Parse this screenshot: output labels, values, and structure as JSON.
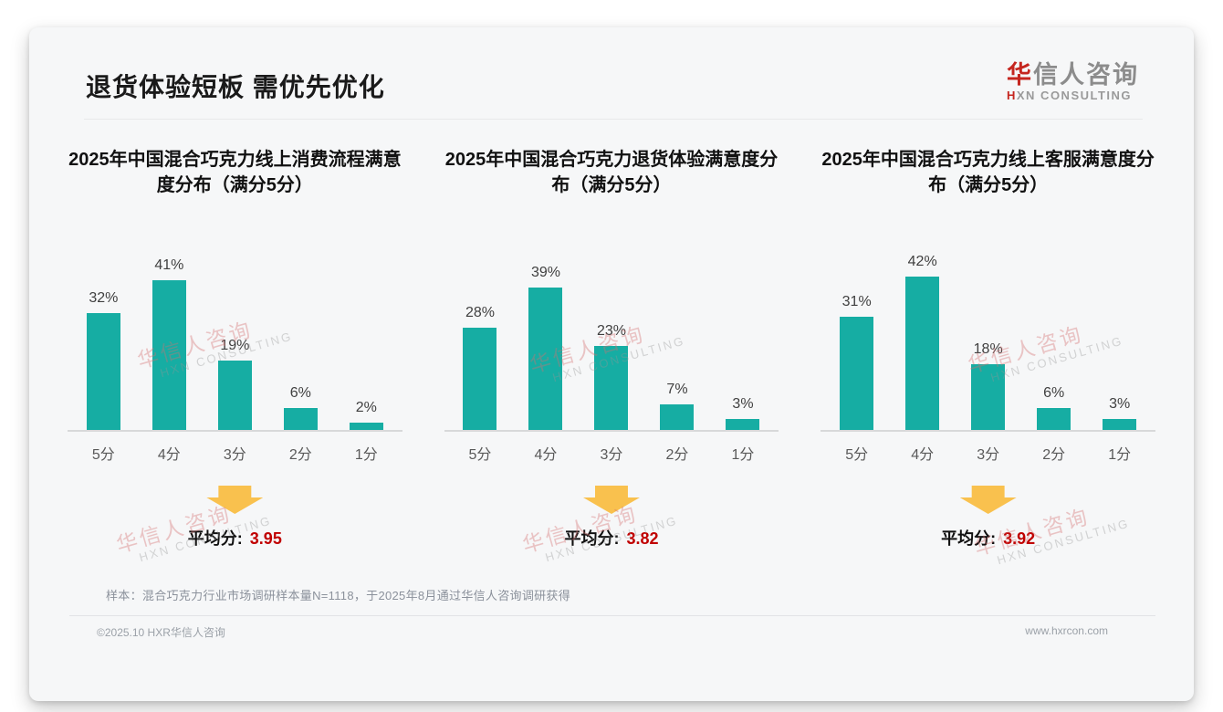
{
  "header": {
    "title": "退货体验短板 需优先优化",
    "logo": {
      "cn_red": "华",
      "cn_gray": "信人咨询",
      "en_red": "H",
      "en_gray": "XN CONSULTING"
    }
  },
  "strings": {
    "avg_label": "平均分:"
  },
  "watermark": {
    "line1": "华信人咨询",
    "line2": "HXN CONSULTING"
  },
  "colors": {
    "bar_teal": "#16ada3",
    "accent_red": "#c00000",
    "arrow_yellow": "#f9c14e",
    "logo_red": "#c5261f"
  },
  "chart_data": [
    {
      "type": "bar",
      "title": "2025年中国混合巧克力线上消费流程满意度分布（满分5分）",
      "categories": [
        "5分",
        "4分",
        "3分",
        "2分",
        "1分"
      ],
      "values": [
        32,
        41,
        19,
        6,
        2
      ],
      "unit": "%",
      "ylim": [
        0,
        45
      ],
      "grid": false,
      "average": 3.95
    },
    {
      "type": "bar",
      "title": "2025年中国混合巧克力退货体验满意度分布（满分5分）",
      "categories": [
        "5分",
        "4分",
        "3分",
        "2分",
        "1分"
      ],
      "values": [
        28,
        39,
        23,
        7,
        3
      ],
      "unit": "%",
      "ylim": [
        0,
        45
      ],
      "grid": false,
      "average": 3.82
    },
    {
      "type": "bar",
      "title": "2025年中国混合巧克力线上客服满意度分布（满分5分）",
      "categories": [
        "5分",
        "4分",
        "3分",
        "2分",
        "1分"
      ],
      "values": [
        31,
        42,
        18,
        6,
        3
      ],
      "unit": "%",
      "ylim": [
        0,
        45
      ],
      "grid": false,
      "average": 3.92
    }
  ],
  "footnote": {
    "sample_note": "样本：混合巧克力行业市场调研样本量N=1118，于2025年8月通过华信人咨询调研获得"
  },
  "footer": {
    "left": "©2025.10 HXR华信人咨询",
    "right": "www.hxrcon.com"
  }
}
